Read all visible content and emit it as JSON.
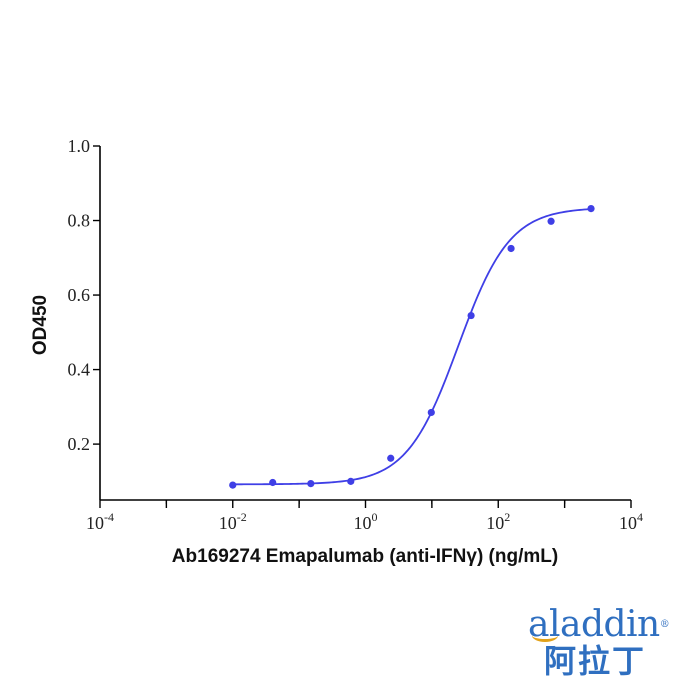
{
  "chart_data": {
    "type": "scatter",
    "xlabel": "Ab169274 Emapalumab (anti-IFNγ) (ng/mL)",
    "ylabel": "OD450",
    "x_scale": "log10",
    "xlim": [
      0.0001,
      10000
    ],
    "ylim": [
      0.05,
      1.0
    ],
    "x_ticks": [
      {
        "base": "10",
        "exp": "-4",
        "value": 0.0001
      },
      {
        "base": "10",
        "exp": "-2",
        "value": 0.01
      },
      {
        "base": "10",
        "exp": "0",
        "value": 1
      },
      {
        "base": "10",
        "exp": "2",
        "value": 100
      },
      {
        "base": "10",
        "exp": "4",
        "value": 10000
      }
    ],
    "y_ticks": [
      "0.2",
      "0.4",
      "0.6",
      "0.8",
      "1.0"
    ],
    "grid": false,
    "series": [
      {
        "color": "#3f3fe6",
        "points": [
          {
            "x": 0.01,
            "y": 0.09
          },
          {
            "x": 0.04,
            "y": 0.097
          },
          {
            "x": 0.15,
            "y": 0.094
          },
          {
            "x": 0.6,
            "y": 0.1
          },
          {
            "x": 2.4,
            "y": 0.162
          },
          {
            "x": 9.8,
            "y": 0.285
          },
          {
            "x": 39,
            "y": 0.545
          },
          {
            "x": 156,
            "y": 0.725
          },
          {
            "x": 625,
            "y": 0.798
          },
          {
            "x": 2500,
            "y": 0.832
          }
        ],
        "fit": {
          "model": "4PL",
          "bottom": 0.092,
          "top": 0.835,
          "ec50": 25,
          "hill": 1.12
        }
      }
    ]
  },
  "logo": {
    "latin": "aladdin",
    "reg": "®",
    "cjk": "阿拉丁"
  }
}
